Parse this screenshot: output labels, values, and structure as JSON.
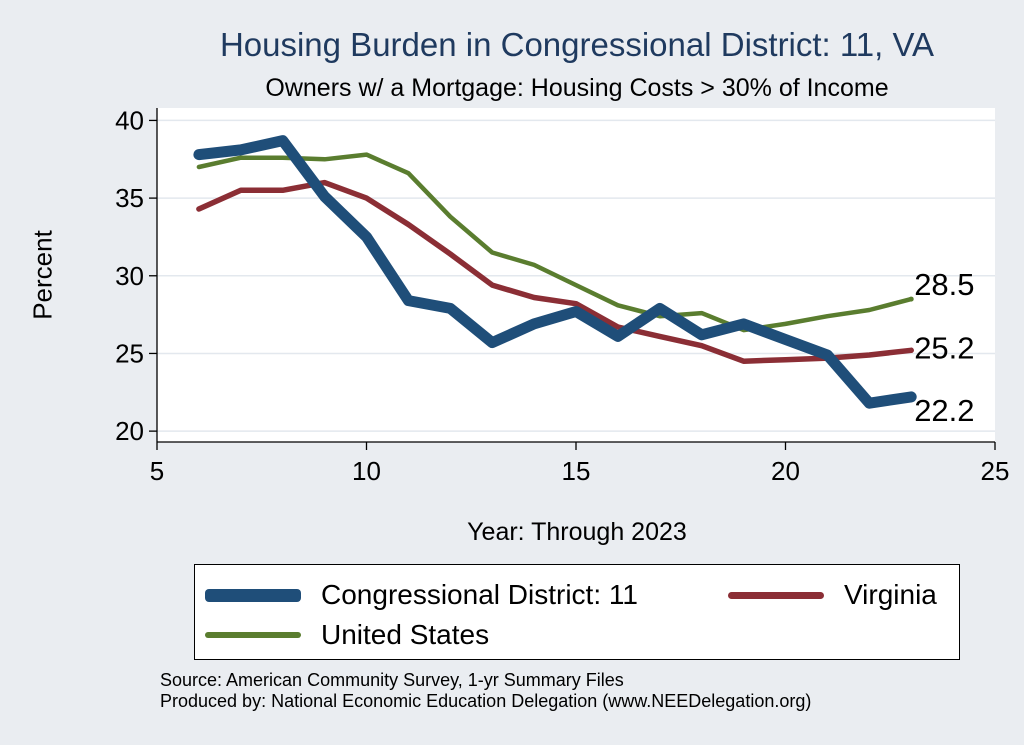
{
  "chart_data": {
    "type": "line",
    "title": "Housing Burden in Congressional District:  11, VA",
    "subtitle": "Owners w/ a Mortgage: Housing Costs > 30% of Income",
    "xlabel": "Year: Through 2023",
    "ylabel": "Percent",
    "xlim": [
      5,
      25
    ],
    "ylim": [
      19.3,
      40.8
    ],
    "x_ticks": [
      5,
      10,
      15,
      20,
      25
    ],
    "y_ticks": [
      20,
      25,
      30,
      35,
      40
    ],
    "grid": true,
    "series": [
      {
        "name": "Congressional District:  11",
        "color": "#1f4e79",
        "x": [
          6,
          7,
          8,
          9,
          10,
          11,
          12,
          13,
          14,
          15,
          16,
          17,
          18,
          19,
          20,
          21,
          22,
          23
        ],
        "values": [
          37.8,
          38.1,
          38.7,
          35.1,
          32.5,
          28.4,
          27.9,
          25.7,
          26.9,
          27.7,
          26.1,
          27.9,
          26.2,
          26.9,
          25.9,
          24.9,
          21.8,
          22.2
        ],
        "end_label": "22.2"
      },
      {
        "name": "Virginia",
        "color": "#8b2e35",
        "x": [
          6,
          7,
          8,
          9,
          10,
          11,
          12,
          13,
          14,
          15,
          16,
          17,
          18,
          19,
          20,
          21,
          22,
          23
        ],
        "values": [
          34.3,
          35.5,
          35.5,
          36.0,
          35.0,
          33.3,
          31.4,
          29.4,
          28.6,
          28.2,
          26.7,
          26.1,
          25.5,
          24.5,
          24.6,
          24.7,
          24.9,
          25.2
        ],
        "end_label": "25.2"
      },
      {
        "name": "United States",
        "color": "#5a7d2f",
        "x": [
          6,
          7,
          8,
          9,
          10,
          11,
          12,
          13,
          14,
          15,
          16,
          17,
          18,
          19,
          20,
          21,
          22,
          23
        ],
        "values": [
          37.0,
          37.6,
          37.6,
          37.5,
          37.8,
          36.6,
          33.8,
          31.5,
          30.7,
          29.4,
          28.1,
          27.4,
          27.6,
          26.5,
          26.9,
          27.4,
          27.8,
          28.5
        ],
        "end_label": "28.5"
      }
    ],
    "legend": {
      "placement": "bottom",
      "items": [
        "Congressional District:  11",
        "Virginia",
        "United States"
      ]
    }
  },
  "footer": {
    "source": "Source: American Community Survey, 1-yr Summary Files",
    "produced": "Produced by: National Economic Education Delegation (www.NEEDelegation.org)"
  }
}
